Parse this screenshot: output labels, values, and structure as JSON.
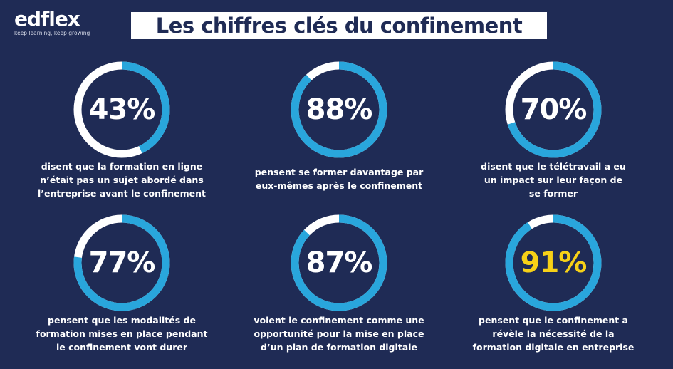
{
  "brand": {
    "name": "edflex",
    "tagline": "keep learning, keep growing"
  },
  "title": "Les chiffres clés du confinement",
  "colors": {
    "background": "#1f2b55",
    "ring_fill": "#29a6dc",
    "ring_track": "#ffffff",
    "highlight_text": "#f7d117",
    "text": "#ffffff"
  },
  "stats": [
    {
      "value": "43%",
      "fraction": 0.43,
      "caption_lines": [
        "disent que la formation en ligne",
        "n’était pas un sujet abordé dans",
        "l’entreprise avant le confinement"
      ],
      "highlight": false
    },
    {
      "value": "88%",
      "fraction": 0.88,
      "caption_lines": [
        "pensent se former davantage par",
        "eux-mêmes après le confinement"
      ],
      "highlight": false
    },
    {
      "value": "70%",
      "fraction": 0.7,
      "caption_lines": [
        "disent que le télétravail a eu",
        "un impact sur leur façon de",
        "se former"
      ],
      "highlight": false
    },
    {
      "value": "77%",
      "fraction": 0.77,
      "caption_lines": [
        "pensent que les modalités de",
        "formation mises en place pendant",
        "le confinement vont durer"
      ],
      "highlight": false
    },
    {
      "value": "87%",
      "fraction": 0.87,
      "caption_lines": [
        "voient le confinement comme une",
        "opportunité pour la mise en place",
        "d’un plan de formation digitale"
      ],
      "highlight": false
    },
    {
      "value": "91%",
      "fraction": 0.91,
      "caption_lines": [
        "pensent que le confinement a",
        "révèle la nécessité de la",
        "formation digitale en entreprise"
      ],
      "highlight": true
    }
  ]
}
